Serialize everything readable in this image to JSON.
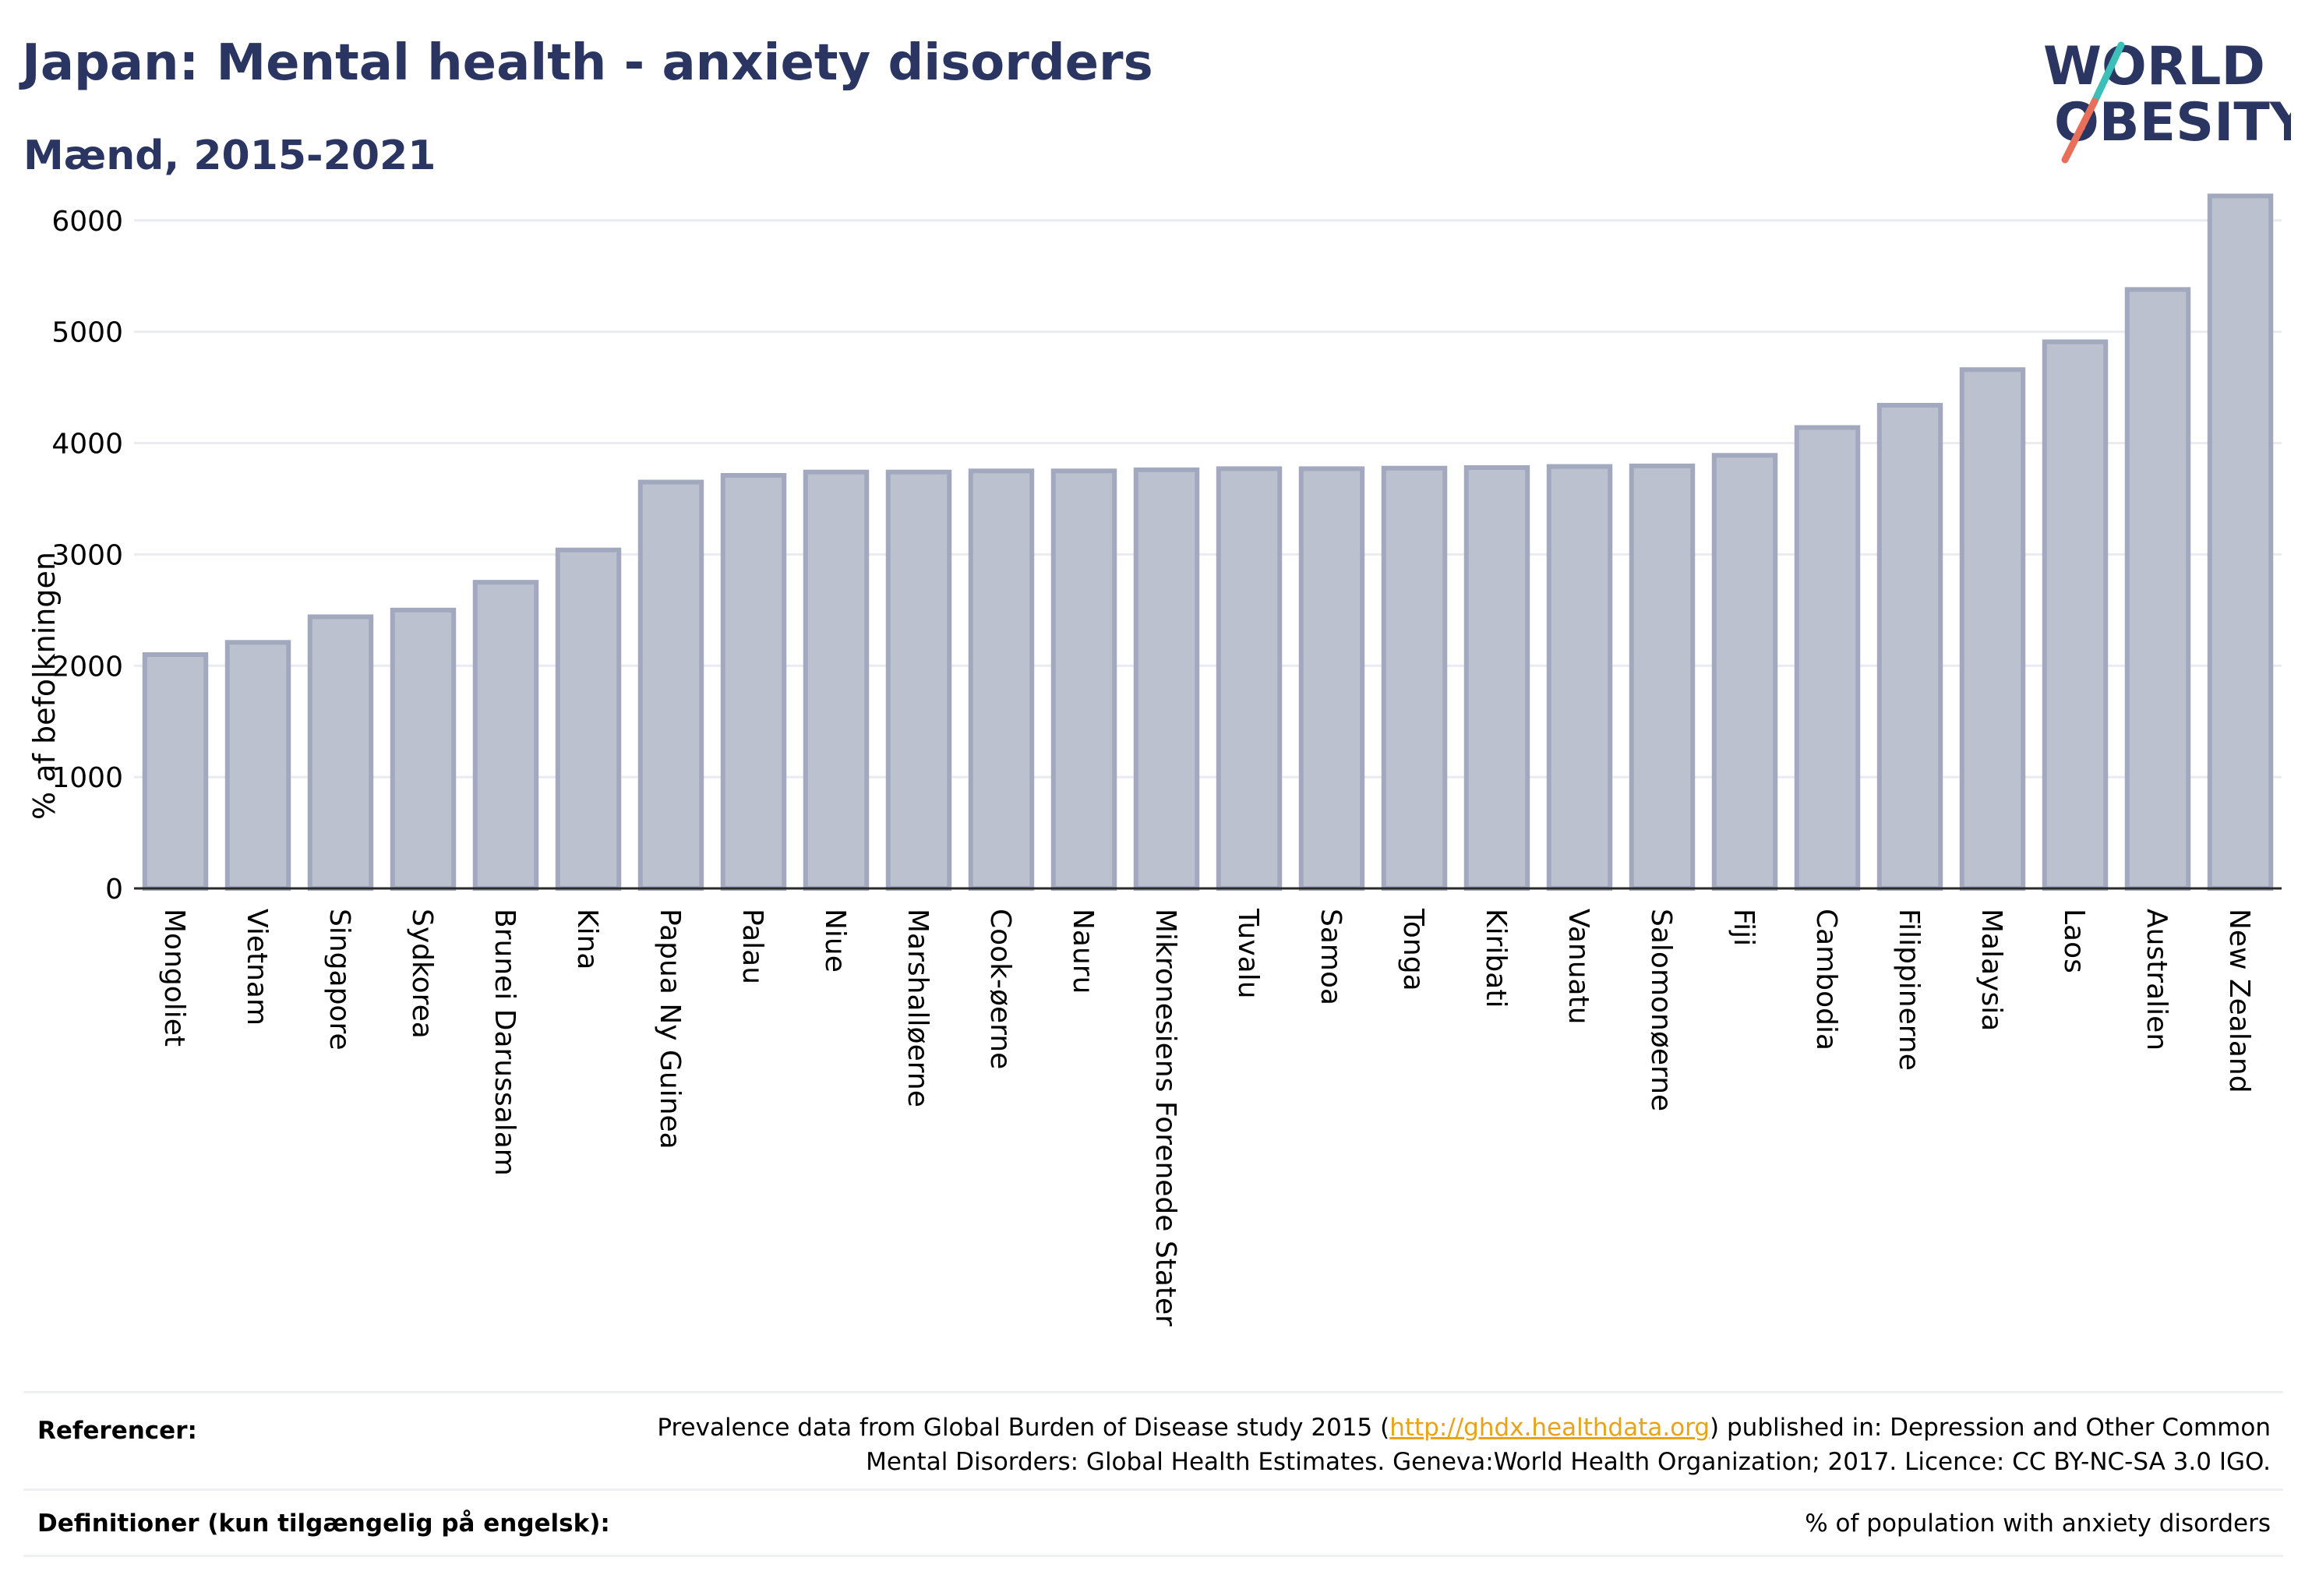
{
  "header": {
    "title": "Japan: Mental health - anxiety disorders",
    "subtitle": "Mænd, 2015-2021"
  },
  "logo": {
    "line1": "WORLD",
    "line2": "OBESITY",
    "colors": {
      "text": "#2b3561",
      "slash_top": "#3bbfb8",
      "slash_bottom": "#e8705a"
    }
  },
  "chart_data": {
    "type": "bar",
    "title": "",
    "xlabel": "",
    "ylabel": "% af befolkningen",
    "ylim": [
      0,
      6300
    ],
    "yticks": [
      0,
      1000,
      2000,
      3000,
      4000,
      5000,
      6000
    ],
    "grid": true,
    "bar_color": "#bcc1cf",
    "bar_edge_color": "#a2a9bf",
    "categories": [
      "Mongoliet",
      "Vietnam",
      "Singapore",
      "Sydkorea",
      "Brunei Darussalam",
      "Kina",
      "Papua Ny Guinea",
      "Palau",
      "Niue",
      "Marshalløerne",
      "Cook-øerne",
      "Nauru",
      "Mikronesiens Forenede Stater",
      "Tuvalu",
      "Samoa",
      "Tonga",
      "Kiribati",
      "Vanuatu",
      "Salomonøerne",
      "Fiji",
      "Cambodia",
      "Filippinerne",
      "Malaysia",
      "Laos",
      "Australien",
      "New Zealand"
    ],
    "values": [
      2100,
      2210,
      2440,
      2500,
      2750,
      3040,
      3650,
      3710,
      3740,
      3740,
      3750,
      3750,
      3760,
      3770,
      3770,
      3775,
      3780,
      3790,
      3795,
      3890,
      4140,
      4340,
      4660,
      4910,
      5380,
      6220
    ]
  },
  "footer": {
    "references_label": "Referencer:",
    "references_pre": "Prevalence data from Global Burden of Disease study 2015 (",
    "references_link": "http://ghdx.healthdata.org",
    "references_post": ") published in: Depression and Other Common",
    "references_line2": "Mental Disorders: Global Health Estimates. Geneva:World Health Organization; 2017. Licence: CC BY-NC-SA 3.0 IGO.",
    "definitions_label": "Definitioner (kun tilgængelig på engelsk):",
    "definitions_text": "% of population with anxiety disorders"
  }
}
